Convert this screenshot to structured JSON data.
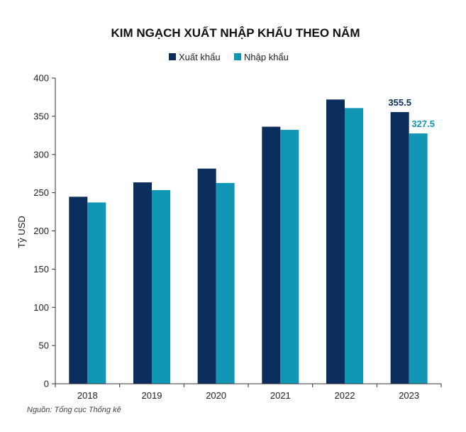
{
  "chart_data": {
    "type": "bar",
    "title": "KIM NGẠCH XUẤT NHẬP KHẨU THEO NĂM",
    "ylabel": "Tỷ USD",
    "xlabel": "",
    "categories": [
      "2018",
      "2019",
      "2020",
      "2021",
      "2022",
      "2023"
    ],
    "ylim": [
      0,
      400
    ],
    "yticks": [
      0,
      50,
      100,
      150,
      200,
      250,
      300,
      350,
      400
    ],
    "legend_position": "top",
    "grid": false,
    "series": [
      {
        "name": "Xuất khẩu",
        "color": "#0b2e5f",
        "values": [
          244.7,
          263.5,
          281.5,
          336.3,
          371.9,
          355.5
        ]
      },
      {
        "name": "Nhập khẩu",
        "color": "#1196b6",
        "values": [
          237.2,
          253.4,
          262.7,
          332.2,
          360.7,
          327.5
        ]
      }
    ],
    "data_labels": [
      {
        "series": 0,
        "category": "2023",
        "text": "355.5"
      },
      {
        "series": 1,
        "category": "2023",
        "text": "327.5"
      }
    ],
    "source": "Nguồn: Tổng cục Thống kê"
  }
}
